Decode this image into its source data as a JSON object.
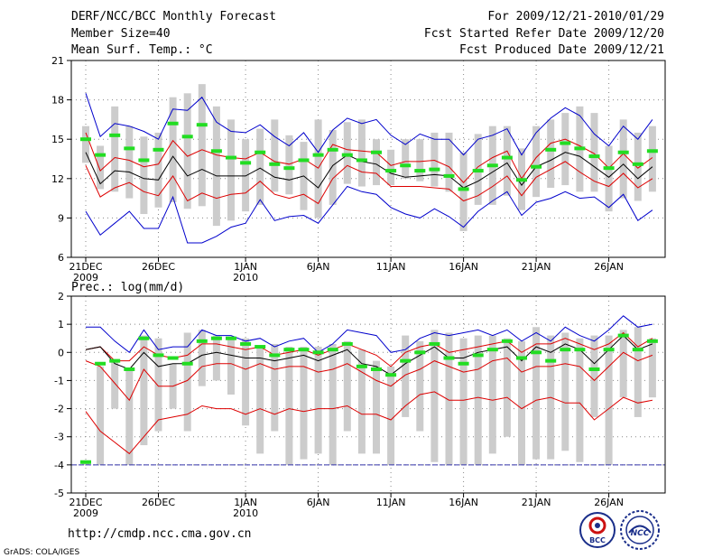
{
  "header": {
    "title": "DERF/NCC/BCC Monthly Forecast",
    "period": "For 2009/12/21-2010/01/29",
    "member_size": "Member Size=40",
    "started": "Fcst Started Refer Date 2009/12/20",
    "variable": "Mean Surf. Temp.: °C",
    "produced": "Fcst Produced Date 2009/12/21"
  },
  "url": "http://cmdp.ncc.cma.gov.cn",
  "credit": "GrADS: COLA/IGES",
  "logos": {
    "bcc": "BCC",
    "ncc": "NCC"
  },
  "colors": {
    "box": "#cccccc",
    "median": "#22dd22",
    "mean": "#000000",
    "inner": "#dd0000",
    "outer": "#0000cc",
    "grid": "#888888"
  },
  "chart_data": [
    {
      "type": "line",
      "title": "Mean Surf. Temp.: °C",
      "ylabel": "°C",
      "ylim": [
        6,
        21
      ],
      "yticks": [
        "6",
        "9",
        "12",
        "15",
        "18",
        "21"
      ],
      "xticks": [
        {
          "day": 1,
          "label": "21DEC",
          "year": "2009"
        },
        {
          "day": 6,
          "label": "26DEC",
          "year": ""
        },
        {
          "day": 12,
          "label": "1JAN",
          "year": "2010"
        },
        {
          "day": 17,
          "label": "6JAN",
          "year": ""
        },
        {
          "day": 22,
          "label": "11JAN",
          "year": ""
        },
        {
          "day": 27,
          "label": "16JAN",
          "year": ""
        },
        {
          "day": 32,
          "label": "21JAN",
          "year": ""
        },
        {
          "day": 37,
          "label": "26JAN",
          "year": ""
        }
      ],
      "x": [
        1,
        2,
        3,
        4,
        5,
        6,
        7,
        8,
        9,
        10,
        11,
        12,
        13,
        14,
        15,
        16,
        17,
        18,
        19,
        20,
        21,
        22,
        23,
        24,
        25,
        26,
        27,
        28,
        29,
        30,
        31,
        32,
        33,
        34,
        35,
        36,
        37,
        38,
        39,
        40
      ],
      "box_low": [
        13.2,
        11.2,
        11.0,
        10.5,
        9.3,
        9.8,
        10.2,
        9.7,
        9.9,
        8.4,
        8.8,
        9.5,
        10.0,
        11.0,
        10.8,
        9.6,
        9.0,
        10.0,
        11.6,
        11.4,
        11.5,
        11.5,
        12.0,
        11.8,
        11.4,
        11.0,
        8.0,
        10.0,
        10.0,
        10.7,
        9.6,
        10.6,
        11.3,
        11.5,
        11.0,
        11.0,
        9.5,
        10.5,
        10.3,
        11.0
      ],
      "box_high": [
        16.0,
        14.5,
        17.5,
        16.0,
        15.2,
        15.5,
        18.2,
        18.5,
        19.2,
        17.5,
        16.5,
        15.0,
        15.8,
        16.5,
        15.3,
        14.8,
        16.5,
        15.7,
        16.3,
        16.5,
        15.0,
        14.2,
        15.0,
        15.0,
        15.5,
        15.5,
        14.0,
        15.4,
        16.0,
        16.0,
        14.3,
        16.0,
        16.5,
        17.0,
        17.5,
        17.0,
        14.5,
        16.5,
        15.5,
        16.0
      ],
      "median": [
        15.0,
        13.8,
        15.3,
        14.3,
        13.4,
        14.2,
        16.2,
        15.2,
        16.1,
        14.1,
        13.6,
        13.2,
        14.0,
        13.1,
        12.8,
        13.4,
        13.8,
        14.2,
        13.8,
        13.4,
        14.0,
        12.6,
        13.0,
        12.6,
        12.7,
        12.2,
        11.2,
        12.6,
        13.0,
        13.6,
        11.9,
        12.9,
        14.2,
        14.7,
        14.3,
        13.7,
        12.8,
        14.0,
        13.1,
        14.1
      ],
      "series": [
        {
          "name": "max",
          "color": "#0000cc",
          "values": [
            18.5,
            15.2,
            16.2,
            16.0,
            15.6,
            15.0,
            17.3,
            17.2,
            18.2,
            16.3,
            15.6,
            15.5,
            16.1,
            15.2,
            14.5,
            15.5,
            14.0,
            15.7,
            16.6,
            16.2,
            16.5,
            15.3,
            14.6,
            15.4,
            15.0,
            15.0,
            13.8,
            15.0,
            15.3,
            15.8,
            13.8,
            15.5,
            16.6,
            17.4,
            16.8,
            15.4,
            14.5,
            16.0,
            15.0,
            16.5
          ]
        },
        {
          "name": "upper",
          "color": "#dd0000",
          "values": [
            15.5,
            12.6,
            13.6,
            13.4,
            12.9,
            13.1,
            14.9,
            13.7,
            14.2,
            13.8,
            13.6,
            13.5,
            14.0,
            13.3,
            13.1,
            13.5,
            12.8,
            14.6,
            14.2,
            14.1,
            14.0,
            13.0,
            13.3,
            13.3,
            13.4,
            12.9,
            11.7,
            12.9,
            13.6,
            14.1,
            12.0,
            13.6,
            14.7,
            15.0,
            14.5,
            13.9,
            12.8,
            13.9,
            12.8,
            13.6
          ]
        },
        {
          "name": "mean",
          "color": "#000000",
          "values": [
            14.0,
            11.6,
            12.6,
            12.5,
            12.0,
            11.9,
            13.7,
            12.2,
            12.7,
            12.2,
            12.2,
            12.2,
            12.8,
            12.1,
            11.9,
            12.2,
            11.3,
            13.0,
            13.8,
            13.3,
            13.1,
            12.4,
            12.1,
            12.2,
            12.3,
            12.2,
            11.3,
            11.8,
            12.5,
            13.2,
            11.5,
            12.9,
            13.4,
            14.0,
            13.7,
            12.9,
            12.1,
            13.1,
            12.0,
            12.9
          ]
        },
        {
          "name": "lower",
          "color": "#dd0000",
          "values": [
            13.0,
            10.6,
            11.3,
            11.7,
            11.0,
            10.7,
            12.2,
            10.3,
            10.9,
            10.5,
            10.8,
            10.9,
            11.8,
            10.8,
            10.5,
            10.8,
            10.1,
            12.0,
            13.0,
            12.5,
            12.4,
            11.4,
            11.4,
            11.4,
            11.3,
            11.2,
            10.3,
            10.7,
            11.4,
            12.2,
            10.7,
            12.1,
            12.7,
            13.3,
            12.5,
            11.8,
            11.4,
            12.4,
            11.3,
            12.0
          ]
        },
        {
          "name": "min",
          "color": "#0000cc",
          "values": [
            9.5,
            7.7,
            8.6,
            9.5,
            8.2,
            8.2,
            10.6,
            7.1,
            7.1,
            7.6,
            8.3,
            8.6,
            10.4,
            8.8,
            9.1,
            9.2,
            8.6,
            10.0,
            11.4,
            11.0,
            10.8,
            9.8,
            9.3,
            9.0,
            9.7,
            9.1,
            8.3,
            9.5,
            10.3,
            11.0,
            9.2,
            10.2,
            10.5,
            11.0,
            10.5,
            10.6,
            9.8,
            10.8,
            8.8,
            9.6
          ]
        }
      ]
    },
    {
      "type": "line",
      "title": "Prec.: log(mm/d)",
      "ylabel": "log(mm/d)",
      "ylim": [
        -5,
        2
      ],
      "yticks": [
        "-5",
        "-4",
        "-3",
        "-2",
        "-1",
        "0",
        "1",
        "2"
      ],
      "xticks": [
        {
          "day": 1,
          "label": "21DEC",
          "year": "2009"
        },
        {
          "day": 6,
          "label": "26DEC",
          "year": ""
        },
        {
          "day": 12,
          "label": "1JAN",
          "year": "2010"
        },
        {
          "day": 17,
          "label": "6JAN",
          "year": ""
        },
        {
          "day": 22,
          "label": "11JAN",
          "year": ""
        },
        {
          "day": 27,
          "label": "16JAN",
          "year": ""
        },
        {
          "day": 32,
          "label": "21JAN",
          "year": ""
        },
        {
          "day": 37,
          "label": "26JAN",
          "year": ""
        }
      ],
      "x": [
        1,
        2,
        3,
        4,
        5,
        6,
        7,
        8,
        9,
        10,
        11,
        12,
        13,
        14,
        15,
        16,
        17,
        18,
        19,
        20,
        21,
        22,
        23,
        24,
        25,
        26,
        27,
        28,
        29,
        30,
        31,
        32,
        33,
        34,
        35,
        36,
        37,
        38,
        39,
        40
      ],
      "box_low": [
        -4.0,
        -4.0,
        -2.0,
        -4.0,
        -3.3,
        -2.8,
        -2.0,
        -2.8,
        -1.2,
        -1.0,
        -1.5,
        -2.6,
        -3.6,
        -2.8,
        -4.0,
        -3.8,
        -3.6,
        -4.0,
        -2.8,
        -3.6,
        -3.6,
        -4.0,
        -2.3,
        -2.8,
        -3.9,
        -4.0,
        -4.0,
        -4.0,
        -3.6,
        -3.0,
        -4.0,
        -3.8,
        -3.8,
        -3.5,
        -3.9,
        -2.3,
        -4.0,
        -1.6,
        -2.3,
        -1.6
      ],
      "box_high": [
        -3.9,
        -0.5,
        -0.3,
        -0.6,
        0.6,
        0.5,
        -0.4,
        0.7,
        0.8,
        0.6,
        0.5,
        0.5,
        0.2,
        0.3,
        0.2,
        0.2,
        0.2,
        0.3,
        0.4,
        0.1,
        -0.3,
        -0.5,
        0.6,
        0.4,
        0.8,
        0.7,
        0.5,
        0.6,
        0.6,
        0.5,
        0.4,
        0.9,
        0.6,
        0.7,
        0.5,
        0.6,
        0.6,
        0.8,
        0.9,
        0.5
      ],
      "median": [
        -3.9,
        -0.4,
        -0.3,
        -0.6,
        0.5,
        -0.1,
        -0.2,
        -0.4,
        0.4,
        0.5,
        0.5,
        0.3,
        0.2,
        -0.1,
        0.1,
        0.1,
        0.0,
        0.1,
        0.3,
        -0.5,
        -0.6,
        -0.8,
        -0.3,
        0.0,
        0.3,
        -0.2,
        -0.4,
        -0.1,
        0.1,
        0.4,
        -0.2,
        0.0,
        -0.3,
        0.1,
        0.1,
        -0.6,
        0.1,
        0.6,
        0.1,
        0.4
      ],
      "series": [
        {
          "name": "max",
          "color": "#0000cc",
          "values": [
            0.9,
            0.9,
            0.4,
            0.0,
            0.8,
            0.1,
            0.2,
            0.2,
            0.8,
            0.6,
            0.6,
            0.4,
            0.5,
            0.2,
            0.4,
            0.5,
            0.0,
            0.3,
            0.8,
            0.7,
            0.6,
            0.0,
            0.1,
            0.5,
            0.7,
            0.6,
            0.7,
            0.8,
            0.6,
            0.8,
            0.4,
            0.7,
            0.4,
            0.9,
            0.6,
            0.4,
            0.8,
            1.3,
            0.9,
            1.0
          ]
        },
        {
          "name": "upper",
          "color": "#dd0000",
          "values": [
            0.1,
            0.2,
            -0.3,
            -0.3,
            0.2,
            -0.1,
            -0.2,
            -0.1,
            0.3,
            0.3,
            0.2,
            0.1,
            0.2,
            -0.1,
            0.0,
            0.1,
            -0.1,
            0.1,
            0.3,
            0.1,
            -0.1,
            -0.5,
            0.0,
            0.2,
            0.3,
            0.0,
            0.1,
            0.2,
            0.3,
            0.4,
            0.0,
            0.3,
            0.3,
            0.5,
            0.3,
            0.1,
            0.3,
            0.7,
            0.2,
            0.5
          ]
        },
        {
          "name": "mean",
          "color": "#000000",
          "values": [
            0.1,
            0.2,
            -0.4,
            -0.6,
            0.0,
            -0.5,
            -0.4,
            -0.4,
            -0.1,
            0.0,
            -0.1,
            -0.2,
            -0.2,
            -0.3,
            -0.2,
            -0.1,
            -0.3,
            -0.1,
            0.1,
            -0.4,
            -0.5,
            -0.8,
            -0.4,
            -0.1,
            0.2,
            -0.2,
            -0.2,
            0.0,
            0.1,
            0.2,
            -0.3,
            0.2,
            0.0,
            0.3,
            0.1,
            -0.4,
            0.1,
            0.6,
            0.1,
            0.3
          ]
        },
        {
          "name": "lower",
          "color": "#dd0000",
          "values": [
            -0.3,
            -0.5,
            -1.1,
            -1.7,
            -0.6,
            -1.2,
            -1.2,
            -1.0,
            -0.5,
            -0.4,
            -0.4,
            -0.6,
            -0.4,
            -0.6,
            -0.5,
            -0.5,
            -0.7,
            -0.6,
            -0.4,
            -0.7,
            -1.0,
            -1.2,
            -0.8,
            -0.6,
            -0.3,
            -0.5,
            -0.7,
            -0.6,
            -0.3,
            -0.2,
            -0.7,
            -0.5,
            -0.5,
            -0.4,
            -0.5,
            -1.0,
            -0.5,
            0.0,
            -0.3,
            -0.1
          ]
        },
        {
          "name": "min",
          "color": "#dd0000",
          "values": [
            -2.1,
            -2.8,
            -3.2,
            -3.6,
            -3.0,
            -2.4,
            -2.3,
            -2.2,
            -1.9,
            -2.0,
            -2.0,
            -2.2,
            -2.0,
            -2.2,
            -2.0,
            -2.1,
            -2.0,
            -2.0,
            -1.9,
            -2.2,
            -2.2,
            -2.4,
            -1.9,
            -1.5,
            -1.4,
            -1.7,
            -1.7,
            -1.6,
            -1.7,
            -1.6,
            -2.0,
            -1.7,
            -1.6,
            -1.8,
            -1.8,
            -2.4,
            -2.0,
            -1.6,
            -1.8,
            -1.7
          ]
        }
      ]
    }
  ]
}
